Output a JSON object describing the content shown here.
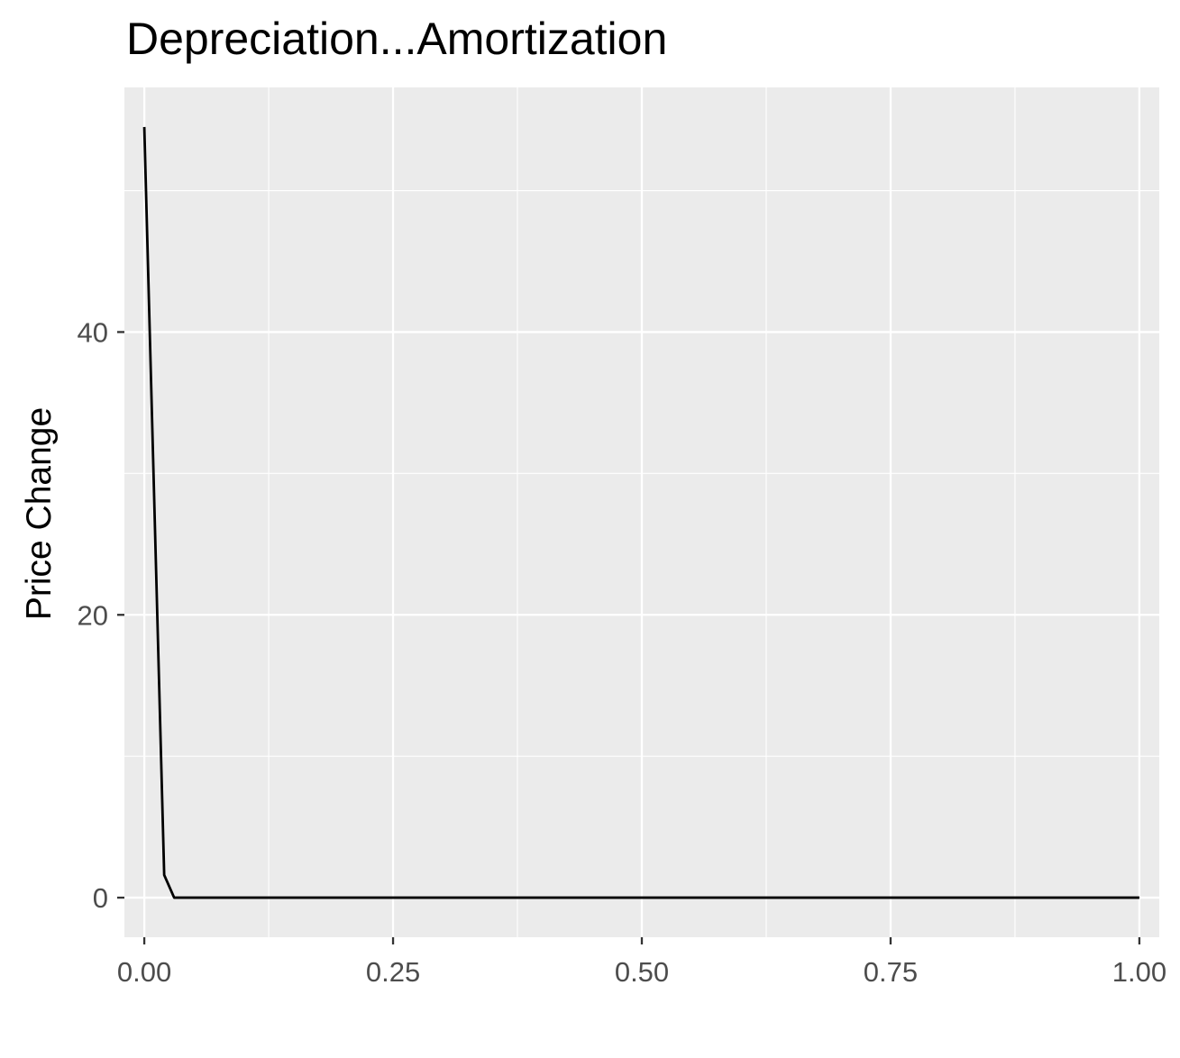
{
  "chart_data": {
    "type": "line",
    "title": "Depreciation...Amortization",
    "xlabel": "",
    "ylabel": "Price Change",
    "xlim": [
      -0.02,
      1.02
    ],
    "ylim": [
      -2.8,
      57.3
    ],
    "x_ticks": [
      0,
      0.25,
      0.5,
      0.75,
      1
    ],
    "x_tick_labels": [
      "0.00",
      "0.25",
      "0.50",
      "0.75",
      "1.00"
    ],
    "x_minor_breaks": [
      0.125,
      0.375,
      0.625,
      0.875
    ],
    "y_ticks": [
      0,
      20,
      40
    ],
    "y_tick_labels": [
      "0",
      "20",
      "40"
    ],
    "y_minor_breaks": [
      10,
      30,
      50
    ],
    "grid": true,
    "colors": {
      "panel_background": "#ebebeb",
      "grid": "#ffffff",
      "line": "#000000",
      "tick_text": "#4d4d4d"
    },
    "series": [
      {
        "x": [
          0,
          0.02,
          0.03,
          0.04,
          0.05,
          0.1,
          0.2,
          0.3,
          0.4,
          0.5,
          0.6,
          0.7,
          0.8,
          0.9,
          1.0
        ],
        "values": [
          54.5,
          1.6,
          0,
          0,
          0,
          0,
          0,
          0,
          0,
          0,
          0,
          0,
          0,
          0,
          0
        ]
      }
    ]
  }
}
